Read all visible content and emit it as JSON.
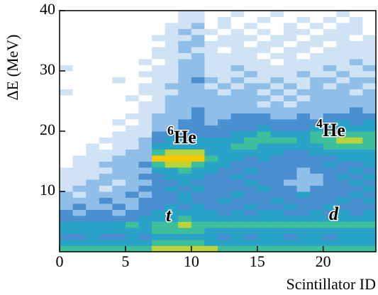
{
  "chart_data": {
    "type": "heatmap",
    "xlabel": "Scintillator ID",
    "ylabel": "ΔE (MeV)",
    "xlim": [
      0,
      24
    ],
    "xticks": [
      0,
      5,
      10,
      15,
      20
    ],
    "ylim": [
      0,
      40
    ],
    "yticks": [
      10,
      20,
      30,
      40
    ],
    "colors": [
      "#ffffff",
      "#cfe3f5",
      "#8fbfe8",
      "#4a8fd0",
      "#2aa3c8",
      "#3cbf9a",
      "#b8d43a",
      "#f5c800"
    ],
    "annotations": [
      {
        "sup": "6",
        "text": "He"
      },
      {
        "sup": "4",
        "text": "He"
      },
      {
        "text": "t"
      },
      {
        "text": "d"
      }
    ],
    "z": [
      [
        5,
        5,
        5,
        5,
        5,
        5,
        5,
        6,
        6,
        6,
        6,
        6,
        5,
        5,
        5,
        5,
        5,
        5,
        5,
        5,
        5,
        5,
        5,
        5
      ],
      [
        4,
        4,
        4,
        4,
        4,
        4,
        4,
        5,
        5,
        5,
        5,
        4,
        4,
        4,
        4,
        4,
        4,
        4,
        4,
        4,
        4,
        4,
        4,
        4
      ],
      [
        3,
        3,
        4,
        3,
        3,
        4,
        3,
        4,
        4,
        4,
        4,
        4,
        3,
        4,
        3,
        4,
        4,
        3,
        4,
        4,
        3,
        4,
        4,
        4
      ],
      [
        4,
        4,
        4,
        4,
        4,
        4,
        4,
        5,
        5,
        5,
        5,
        4,
        4,
        4,
        4,
        4,
        4,
        4,
        4,
        4,
        4,
        4,
        4,
        4
      ],
      [
        4,
        4,
        4,
        4,
        4,
        5,
        4,
        5,
        5,
        6,
        5,
        5,
        5,
        5,
        5,
        5,
        5,
        5,
        5,
        5,
        5,
        5,
        5,
        5
      ],
      [
        3,
        3,
        3,
        3,
        3,
        3,
        4,
        4,
        4,
        5,
        4,
        4,
        4,
        4,
        4,
        4,
        4,
        4,
        4,
        4,
        4,
        4,
        4,
        4
      ],
      [
        3,
        2,
        3,
        3,
        2,
        3,
        3,
        4,
        4,
        4,
        4,
        4,
        3,
        4,
        3,
        4,
        4,
        3,
        3,
        4,
        3,
        4,
        3,
        4
      ],
      [
        2,
        3,
        2,
        2,
        3,
        2,
        3,
        3,
        4,
        3,
        4,
        3,
        3,
        3,
        4,
        3,
        3,
        4,
        3,
        3,
        4,
        3,
        3,
        3
      ],
      [
        2,
        2,
        2,
        3,
        2,
        2,
        3,
        3,
        3,
        4,
        3,
        3,
        4,
        3,
        3,
        3,
        4,
        3,
        3,
        3,
        3,
        4,
        3,
        4
      ],
      [
        2,
        1,
        2,
        2,
        2,
        3,
        2,
        3,
        3,
        4,
        3,
        3,
        3,
        4,
        3,
        3,
        3,
        3,
        4,
        3,
        3,
        3,
        4,
        3
      ],
      [
        1,
        2,
        2,
        1,
        2,
        2,
        3,
        3,
        4,
        3,
        4,
        3,
        3,
        3,
        3,
        4,
        3,
        3,
        2,
        3,
        3,
        3,
        3,
        4
      ],
      [
        1,
        1,
        2,
        2,
        1,
        2,
        2,
        3,
        3,
        4,
        3,
        3,
        3,
        3,
        4,
        3,
        3,
        2,
        2,
        2,
        3,
        3,
        4,
        3
      ],
      [
        1,
        1,
        1,
        2,
        2,
        2,
        3,
        3,
        4,
        4,
        4,
        3,
        3,
        4,
        3,
        3,
        3,
        3,
        2,
        2,
        3,
        4,
        3,
        4
      ],
      [
        1,
        1,
        1,
        1,
        2,
        2,
        2,
        4,
        4,
        5,
        4,
        4,
        3,
        3,
        4,
        3,
        3,
        3,
        2,
        3,
        3,
        3,
        4,
        3
      ],
      [
        0,
        1,
        1,
        2,
        2,
        2,
        3,
        5,
        6,
        6,
        5,
        4,
        4,
        3,
        3,
        3,
        3,
        3,
        3,
        3,
        4,
        3,
        3,
        4
      ],
      [
        0,
        1,
        1,
        1,
        2,
        2,
        2,
        7,
        7,
        7,
        7,
        5,
        4,
        4,
        3,
        4,
        3,
        3,
        3,
        3,
        3,
        4,
        4,
        4
      ],
      [
        0,
        0,
        1,
        1,
        1,
        2,
        2,
        5,
        6,
        6,
        6,
        4,
        4,
        4,
        4,
        4,
        4,
        3,
        3,
        4,
        4,
        4,
        4,
        4
      ],
      [
        0,
        0,
        1,
        0,
        1,
        1,
        2,
        4,
        4,
        4,
        4,
        4,
        4,
        5,
        5,
        4,
        4,
        4,
        4,
        4,
        5,
        5,
        5,
        5
      ],
      [
        0,
        0,
        0,
        1,
        1,
        1,
        2,
        3,
        4,
        4,
        4,
        4,
        4,
        4,
        5,
        5,
        5,
        5,
        4,
        5,
        5,
        6,
        6,
        5
      ],
      [
        0,
        0,
        0,
        0,
        1,
        1,
        1,
        3,
        3,
        3,
        3,
        3,
        3,
        4,
        4,
        5,
        4,
        4,
        4,
        5,
        5,
        5,
        5,
        5
      ],
      [
        0,
        0,
        0,
        0,
        0,
        1,
        1,
        2,
        2,
        3,
        3,
        3,
        3,
        3,
        3,
        4,
        3,
        3,
        3,
        4,
        4,
        4,
        4,
        4
      ],
      [
        0,
        0,
        0,
        0,
        1,
        0,
        1,
        2,
        2,
        3,
        3,
        2,
        3,
        3,
        3,
        3,
        3,
        3,
        3,
        3,
        3,
        4,
        3,
        4
      ],
      [
        0,
        0,
        0,
        0,
        0,
        1,
        1,
        2,
        2,
        2,
        3,
        2,
        2,
        3,
        3,
        3,
        2,
        2,
        3,
        2,
        3,
        3,
        3,
        3
      ],
      [
        0,
        0,
        0,
        0,
        0,
        0,
        1,
        1,
        2,
        2,
        3,
        2,
        2,
        2,
        2,
        2,
        2,
        2,
        2,
        2,
        2,
        2,
        3,
        2
      ],
      [
        0,
        0,
        0,
        0,
        0,
        0,
        1,
        1,
        2,
        2,
        2,
        2,
        2,
        2,
        2,
        1,
        2,
        1,
        2,
        2,
        2,
        2,
        2,
        2
      ],
      [
        0,
        0,
        0,
        0,
        0,
        1,
        0,
        1,
        2,
        2,
        2,
        2,
        2,
        2,
        2,
        2,
        1,
        2,
        1,
        2,
        2,
        2,
        2,
        2
      ],
      [
        1,
        0,
        0,
        0,
        0,
        0,
        1,
        1,
        1,
        2,
        2,
        2,
        1,
        2,
        2,
        1,
        2,
        1,
        2,
        2,
        2,
        2,
        1,
        2
      ],
      [
        0,
        0,
        0,
        0,
        0,
        0,
        1,
        1,
        2,
        2,
        2,
        1,
        2,
        1,
        2,
        2,
        1,
        2,
        1,
        2,
        1,
        2,
        2,
        1
      ],
      [
        0,
        0,
        0,
        0,
        1,
        0,
        0,
        1,
        1,
        2,
        3,
        2,
        1,
        2,
        1,
        1,
        2,
        1,
        1,
        2,
        2,
        1,
        2,
        2
      ],
      [
        0,
        0,
        0,
        0,
        0,
        0,
        1,
        1,
        1,
        2,
        2,
        1,
        1,
        1,
        2,
        1,
        1,
        1,
        2,
        1,
        1,
        2,
        1,
        1
      ],
      [
        1,
        0,
        0,
        0,
        0,
        0,
        0,
        1,
        1,
        2,
        2,
        1,
        1,
        2,
        1,
        1,
        1,
        1,
        1,
        1,
        2,
        1,
        1,
        2
      ],
      [
        0,
        0,
        0,
        0,
        0,
        0,
        1,
        0,
        1,
        2,
        2,
        1,
        1,
        1,
        1,
        1,
        0,
        1,
        1,
        1,
        1,
        1,
        2,
        1
      ],
      [
        0,
        0,
        0,
        0,
        0,
        0,
        0,
        1,
        1,
        1,
        2,
        1,
        1,
        1,
        1,
        0,
        1,
        1,
        0,
        1,
        1,
        1,
        1,
        1
      ],
      [
        0,
        0,
        0,
        0,
        0,
        0,
        0,
        1,
        1,
        2,
        1,
        1,
        0,
        1,
        1,
        1,
        0,
        1,
        1,
        0,
        1,
        1,
        1,
        1
      ],
      [
        0,
        0,
        0,
        0,
        0,
        0,
        0,
        0,
        1,
        2,
        2,
        1,
        1,
        1,
        0,
        1,
        1,
        0,
        1,
        1,
        0,
        1,
        1,
        1
      ],
      [
        0,
        0,
        0,
        0,
        0,
        0,
        0,
        1,
        1,
        1,
        2,
        0,
        1,
        1,
        1,
        0,
        1,
        1,
        0,
        1,
        1,
        1,
        0,
        1
      ],
      [
        0,
        0,
        0,
        0,
        0,
        0,
        0,
        0,
        1,
        2,
        1,
        1,
        0,
        1,
        0,
        1,
        0,
        1,
        1,
        0,
        1,
        1,
        1,
        0
      ],
      [
        0,
        0,
        0,
        0,
        0,
        0,
        0,
        0,
        1,
        1,
        2,
        0,
        1,
        0,
        1,
        0,
        0,
        1,
        0,
        1,
        0,
        1,
        1,
        0
      ],
      [
        0,
        0,
        0,
        0,
        0,
        0,
        0,
        0,
        0,
        1,
        1,
        0,
        1,
        0,
        0,
        1,
        0,
        0,
        1,
        0,
        1,
        0,
        1,
        0
      ],
      [
        0,
        0,
        0,
        0,
        0,
        0,
        0,
        0,
        0,
        1,
        1,
        0,
        0,
        1,
        0,
        0,
        1,
        0,
        0,
        0,
        0,
        1,
        0,
        0
      ]
    ]
  }
}
